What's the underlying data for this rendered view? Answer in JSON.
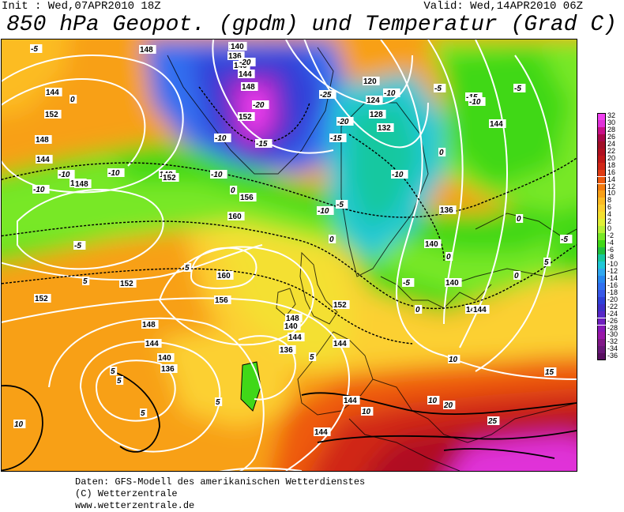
{
  "header": {
    "init": "Init : Wed,07APR2010 18Z",
    "valid": "Valid: Wed,14APR2010 06Z",
    "title": "850 hPa Geopot. (gpdm) und Temperatur (Grad C)"
  },
  "footer": {
    "line1": "Daten: GFS-Modell des amerikanischen Wetterdienstes",
    "line2": "(C) Wetterzentrale",
    "line3": "www.wetterzentrale.de"
  },
  "legend": {
    "levels": [
      "32",
      "30",
      "28",
      "26",
      "24",
      "22",
      "20",
      "18",
      "16",
      "14",
      "12",
      "10",
      "8",
      "6",
      "4",
      "2",
      "0",
      "-2",
      "-4",
      "-6",
      "-8",
      "-10",
      "-12",
      "-14",
      "-16",
      "-18",
      "-20",
      "-22",
      "-24",
      "-26",
      "-28",
      "-30",
      "-32",
      "-34",
      "-36"
    ],
    "colors": [
      "#f040f0",
      "#e030d8",
      "#c81088",
      "#a8084a",
      "#a01028",
      "#b01020",
      "#c01818",
      "#d02818",
      "#e03c14",
      "#ee5a10",
      "#f47c10",
      "#f8a018",
      "#fcbc24",
      "#fcd030",
      "#f4e030",
      "#e0f038",
      "#b8f038",
      "#78e828",
      "#40d818",
      "#20c040",
      "#18c8a0",
      "#20c8d8",
      "#30a8f0",
      "#2888f0",
      "#3070f0",
      "#3858e8",
      "#3040d8",
      "#4030c8",
      "#5828c8",
      "#7020c0",
      "#8818b8",
      "#9818a8",
      "#801888",
      "#681878",
      "#581060"
    ]
  },
  "map": {
    "geopotential_labels": [
      "148",
      "140",
      "136",
      "140",
      "144",
      "152",
      "148",
      "148",
      "144",
      "144",
      "148",
      "152",
      "140",
      "144",
      "148",
      "152",
      "156",
      "160",
      "160",
      "156",
      "152",
      "152",
      "148",
      "144",
      "140",
      "136",
      "144",
      "140",
      "136",
      "148",
      "144",
      "152",
      "140",
      "144",
      "144",
      "144",
      "120",
      "124",
      "128",
      "132",
      "136",
      "140",
      "144",
      "144"
    ],
    "temperature_labels": [
      "-5",
      "-5",
      "0",
      "-10",
      "-10",
      "-10",
      "-10",
      "-10",
      "-5",
      "0",
      "0",
      "-5",
      "5",
      "5",
      "5",
      "5",
      "5",
      "5",
      "5",
      "10",
      "10",
      "-20",
      "-20",
      "-25",
      "-20",
      "-15",
      "-15",
      "-10",
      "-10",
      "-5",
      "-10",
      "-10",
      "-15",
      "-5",
      "0",
      "0",
      "-5",
      "0",
      "0",
      "0",
      "5",
      "10",
      "10",
      "15",
      "20",
      "25"
    ]
  }
}
